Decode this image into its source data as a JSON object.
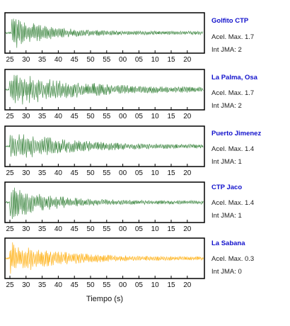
{
  "chart_data": {
    "type": "line",
    "xlabel": "Tiempo (s)",
    "tick_labels": [
      "25",
      "30",
      "35",
      "40",
      "45",
      "50",
      "55",
      "00",
      "05",
      "10",
      "15",
      "20"
    ],
    "panels": [
      {
        "station": "Golfito CTP",
        "acel_text": "Acel. Max. 1.7",
        "jma_text": "Int JMA: 2",
        "color": "#2e7d32",
        "peak_amplitude": 1.7,
        "jma": 2,
        "onset_s": 2.0,
        "decay_s": 10,
        "seed": 11
      },
      {
        "station": "La Palma, Osa",
        "acel_text": "Acel. Max. 1.7",
        "jma_text": "Int JMA: 2",
        "color": "#2e7d32",
        "peak_amplitude": 1.7,
        "jma": 2,
        "onset_s": 1.5,
        "decay_s": 22,
        "seed": 23
      },
      {
        "station": "Puerto Jimenez",
        "acel_text": "Acel. Max. 1.4",
        "jma_text": "Int JMA: 1",
        "color": "#2e7d32",
        "peak_amplitude": 1.4,
        "jma": 1,
        "onset_s": 1.5,
        "decay_s": 16,
        "seed": 37
      },
      {
        "station": "CTP Jaco",
        "acel_text": "Acel. Max. 1.4",
        "jma_text": "Int JMA: 1",
        "color": "#2e7d32",
        "peak_amplitude": 1.4,
        "jma": 1,
        "onset_s": 1.5,
        "decay_s": 12,
        "seed": 41
      },
      {
        "station": "La Sabana",
        "acel_text": "Acel. Max. 0.3",
        "jma_text": "Int JMA: 0",
        "color": "#ffaa00",
        "peak_amplitude": 0.3,
        "jma": 0,
        "onset_s": 1.5,
        "decay_s": 14,
        "seed": 53
      }
    ]
  }
}
